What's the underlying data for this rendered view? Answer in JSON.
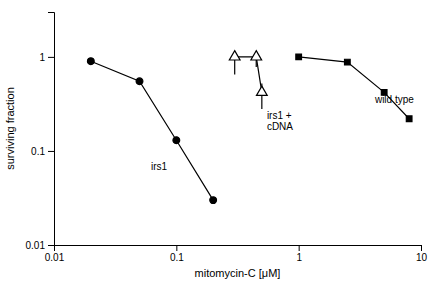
{
  "chart_data": {
    "type": "line",
    "log": true,
    "grid": false,
    "x_label": "mitomycin-C [μM]",
    "y_label": "surviving fraction",
    "xlim": [
      0.01,
      10
    ],
    "ylim": [
      0.01,
      3.0
    ],
    "xticks": [
      0.01,
      0.1,
      1,
      10
    ],
    "yticks": [
      0.01,
      0.1,
      1
    ],
    "series": [
      {
        "x": [
          0.02,
          0.05,
          0.1,
          0.2
        ],
        "values": [
          0.9,
          0.55,
          0.13,
          0.03
        ],
        "color": "#000000",
        "marker": "circle",
        "line_style": "solid"
      },
      {
        "x": [
          0.3,
          0.45,
          0.5
        ],
        "values": [
          1.0,
          1.0,
          0.42
        ],
        "error_low": [
          0.35,
          0.22,
          0.14
        ],
        "error_high": [
          0.0,
          0.0,
          0.1
        ],
        "color": "#000000",
        "marker": "triangle-open",
        "line_style": "solid"
      },
      {
        "x": [
          1.0,
          2.5,
          5.0,
          8.0
        ],
        "values": [
          1.0,
          0.88,
          0.42,
          0.22
        ],
        "color": "#000000",
        "marker": "square",
        "line_style": "solid"
      }
    ],
    "annotations": [
      {
        "text": "irs1",
        "x": 0.062,
        "y": 0.062
      },
      {
        "text": "irs1 +\ncDNA",
        "x": 0.55,
        "y": 0.22
      },
      {
        "text": "wild type",
        "x": 4.2,
        "y": 0.32
      }
    ]
  }
}
